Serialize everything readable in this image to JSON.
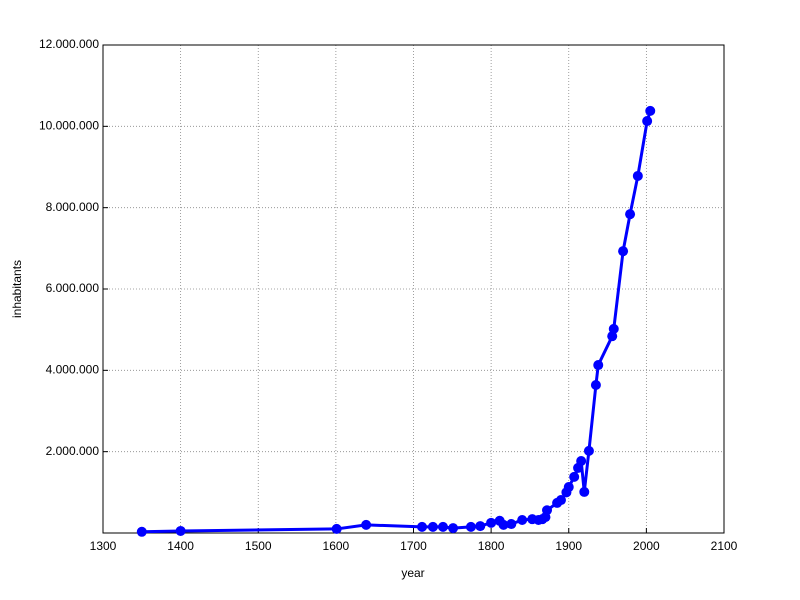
{
  "chart_data": {
    "type": "line",
    "xlabel": "year",
    "ylabel": "inhabitants",
    "x": [
      1350,
      1400,
      1601,
      1639,
      1711,
      1725,
      1738,
      1751,
      1774,
      1786,
      1800,
      1811,
      1816,
      1826,
      1840,
      1853,
      1861,
      1866,
      1870,
      1872,
      1885,
      1890,
      1897,
      1900,
      1907,
      1912,
      1916,
      1920,
      1926,
      1935,
      1938,
      1956,
      1958,
      1970,
      1979,
      1989,
      2001,
      2005
    ],
    "series": [
      {
        "name": "inhabitants",
        "color": "#0000ff",
        "values": [
          30000,
          50000,
          100000,
          200000,
          150000,
          150000,
          150000,
          120000,
          150000,
          170000,
          250000,
          300000,
          200000,
          220000,
          320000,
          340000,
          320000,
          340000,
          390000,
          560000,
          740000,
          810000,
          1000000,
          1130000,
          1380000,
          1600000,
          1770000,
          1010000,
          2020000,
          3640000,
          4130000,
          4840000,
          5020000,
          6930000,
          7840000,
          8780000,
          10130000,
          10380000
        ]
      }
    ],
    "xlim": [
      1300,
      2100
    ],
    "xticks": [
      1300,
      1400,
      1500,
      1600,
      1700,
      1800,
      1900,
      2000,
      2100
    ],
    "ylim": [
      0,
      12000000
    ],
    "yticks": [
      {
        "value": 2000000,
        "label": "2.000.000"
      },
      {
        "value": 4000000,
        "label": "4.000.000"
      },
      {
        "value": 6000000,
        "label": "6.000.000"
      },
      {
        "value": 8000000,
        "label": "8.000.000"
      },
      {
        "value": 10000000,
        "label": "10.000.000"
      },
      {
        "value": 12000000,
        "label": "12.000.000"
      }
    ],
    "grid": true
  }
}
